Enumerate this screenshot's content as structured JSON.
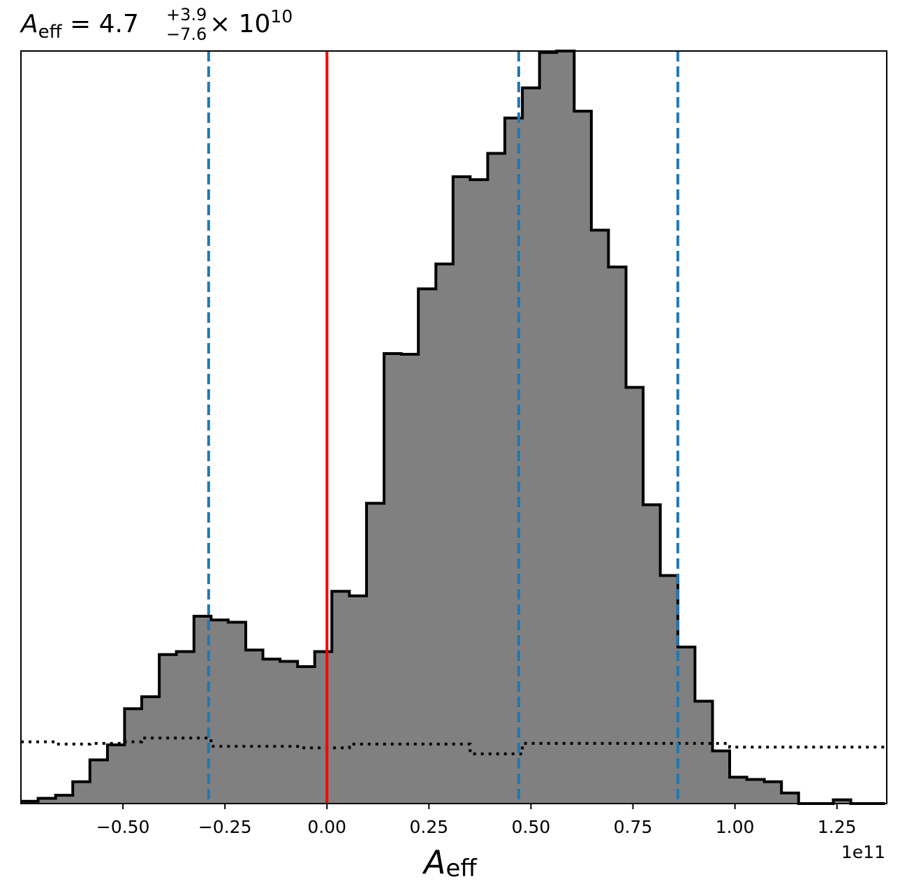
{
  "chart_data": {
    "type": "histogram",
    "title": {
      "symbol": "A",
      "subscript": "eff",
      "equals": " = ",
      "median": "4.7",
      "plus": "+3.9",
      "minus": "−7.6",
      "times": " × 10",
      "exponent": "10"
    },
    "xlabel": {
      "symbol": "A",
      "subscript": "eff"
    },
    "x_multiplier": "1e11",
    "x_unit_scale": 100000000000.0,
    "xlim": [
      -0.75,
      1.372
    ],
    "ylim": [
      0,
      1.0
    ],
    "xticks": [
      -0.5,
      -0.25,
      0.0,
      0.25,
      0.5,
      0.75,
      1.0,
      1.25
    ],
    "xtick_labels": [
      "−0.50",
      "−0.25",
      "0.00",
      "0.25",
      "0.50",
      "0.75",
      "1.00",
      "1.25"
    ],
    "y_axis_visible": false,
    "grid": false,
    "bin_edges": [
      -0.75,
      -0.708,
      -0.665,
      -0.623,
      -0.581,
      -0.538,
      -0.496,
      -0.454,
      -0.411,
      -0.369,
      -0.326,
      -0.284,
      -0.242,
      -0.199,
      -0.157,
      -0.115,
      -0.072,
      -0.03,
      0.012,
      0.055,
      0.097,
      0.14,
      0.182,
      0.224,
      0.267,
      0.309,
      0.351,
      0.394,
      0.436,
      0.479,
      0.521,
      0.563,
      0.606,
      0.648,
      0.69,
      0.733,
      0.775,
      0.817,
      0.86,
      0.902,
      0.945,
      0.987,
      1.029,
      1.072,
      1.114,
      1.156,
      1.199,
      1.241,
      1.284,
      1.326,
      1.368
    ],
    "series": [
      {
        "style": "step-filled",
        "fill": "#808080",
        "edge": "#000000",
        "values": [
          0.003,
          0.007,
          0.011,
          0.029,
          0.058,
          0.078,
          0.126,
          0.142,
          0.198,
          0.202,
          0.249,
          0.244,
          0.241,
          0.204,
          0.192,
          0.189,
          0.182,
          0.202,
          0.282,
          0.276,
          0.399,
          0.598,
          0.597,
          0.684,
          0.717,
          0.833,
          0.829,
          0.864,
          0.911,
          0.951,
          0.998,
          1.0,
          0.92,
          0.762,
          0.713,
          0.553,
          0.397,
          0.303,
          0.208,
          0.136,
          0.07,
          0.035,
          0.032,
          0.029,
          0.014,
          0.0,
          0.0,
          0.005,
          0.0,
          0.0
        ]
      },
      {
        "style": "step-dotted",
        "edge": "#000000",
        "values": [
          0.082,
          0.082,
          0.079,
          0.079,
          0.08,
          0.08,
          0.082,
          0.087,
          0.087,
          0.087,
          0.087,
          0.076,
          0.076,
          0.076,
          0.076,
          0.076,
          0.074,
          0.074,
          0.074,
          0.079,
          0.079,
          0.079,
          0.079,
          0.079,
          0.079,
          0.079,
          0.066,
          0.066,
          0.066,
          0.08,
          0.08,
          0.08,
          0.08,
          0.08,
          0.08,
          0.08,
          0.08,
          0.08,
          0.08,
          0.08,
          0.08,
          0.075,
          0.075,
          0.075,
          0.075,
          0.075,
          0.075,
          0.075,
          0.075,
          0.075
        ]
      }
    ],
    "vlines": [
      {
        "x": 0.0,
        "color": "#ff0000",
        "style": "solid"
      },
      {
        "x": -0.29,
        "color": "#1f77b4",
        "style": "dashed"
      },
      {
        "x": 0.47,
        "color": "#1f77b4",
        "style": "dashed"
      },
      {
        "x": 0.86,
        "color": "#1f77b4",
        "style": "dashed"
      }
    ]
  }
}
